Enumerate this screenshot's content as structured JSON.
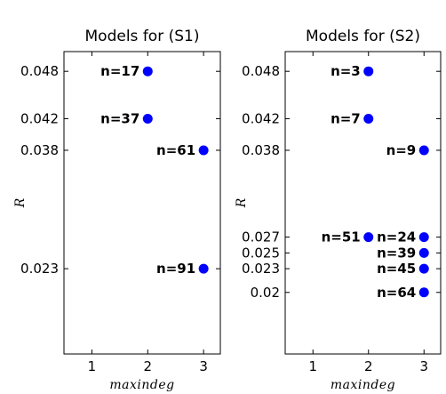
{
  "chart_data": [
    {
      "type": "scatter",
      "title": "Models for (S1)",
      "xlabel": "maxindeg",
      "ylabel": "R",
      "xticks": [
        "1",
        "2",
        "3"
      ],
      "yticks": [
        "0.048",
        "0.042",
        "0.038",
        "0.023"
      ],
      "xlim": [
        0.5,
        3.3
      ],
      "ylim": [
        0.0122,
        0.0505
      ],
      "grid": false,
      "marker_color": "#0000ff",
      "points": [
        {
          "x": 2,
          "y": 0.048,
          "label": "n=17"
        },
        {
          "x": 2,
          "y": 0.042,
          "label": "n=37"
        },
        {
          "x": 3,
          "y": 0.038,
          "label": "n=61"
        },
        {
          "x": 3,
          "y": 0.023,
          "label": "n=91"
        }
      ]
    },
    {
      "type": "scatter",
      "title": "Models for (S2)",
      "xlabel": "maxindeg",
      "ylabel": "R",
      "xticks": [
        "1",
        "2",
        "3"
      ],
      "yticks": [
        "0.048",
        "0.042",
        "0.038",
        "0.027",
        "0.025",
        "0.023",
        "0.02"
      ],
      "xlim": [
        0.5,
        3.3
      ],
      "ylim": [
        0.0122,
        0.0505
      ],
      "grid": false,
      "marker_color": "#0000ff",
      "points": [
        {
          "x": 2,
          "y": 0.048,
          "label": "n=3"
        },
        {
          "x": 2,
          "y": 0.042,
          "label": "n=7"
        },
        {
          "x": 3,
          "y": 0.038,
          "label": "n=9"
        },
        {
          "x": 2,
          "y": 0.027,
          "label": "n=51"
        },
        {
          "x": 3,
          "y": 0.027,
          "label": "n=24"
        },
        {
          "x": 3,
          "y": 0.025,
          "label": "n=39"
        },
        {
          "x": 3,
          "y": 0.023,
          "label": "n=45"
        },
        {
          "x": 3,
          "y": 0.02,
          "label": "n=64"
        }
      ]
    }
  ]
}
